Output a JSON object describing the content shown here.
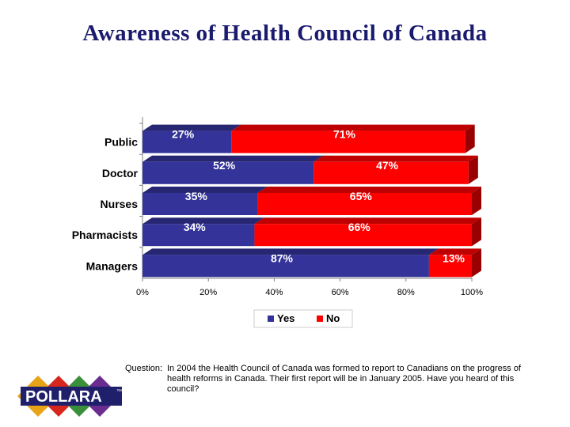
{
  "title": "Awareness of Health Council of Canada",
  "question": {
    "label": "Question:",
    "text": "In 2004 the Health Council of Canada was formed to report to Canadians on the progress of health reforms in Canada. Their first report will be in January 2005. Have you heard of this council?"
  },
  "logo": {
    "text": "POLLARA",
    "mark": "™"
  },
  "colors": {
    "yes": "#333399",
    "no": "#ff0000",
    "title": "#1a1a6e"
  },
  "chart_data": {
    "type": "bar",
    "orientation": "horizontal",
    "stacked": true,
    "categories": [
      "Public",
      "Doctor",
      "Nurses",
      "Pharmacists",
      "Managers"
    ],
    "series": [
      {
        "name": "Yes",
        "values": [
          27,
          52,
          35,
          34,
          87
        ],
        "labels": [
          "27%",
          "52%",
          "35%",
          "34%",
          "87%"
        ]
      },
      {
        "name": "No",
        "values": [
          71,
          47,
          65,
          66,
          13
        ],
        "labels": [
          "71%",
          "47%",
          "65%",
          "66%",
          "13%"
        ]
      }
    ],
    "xlim": [
      0,
      100
    ],
    "xticks": [
      "0%",
      "20%",
      "40%",
      "60%",
      "80%",
      "100%"
    ],
    "xtick_values": [
      0,
      20,
      40,
      60,
      80,
      100
    ],
    "legend": "bottom",
    "grid": false
  }
}
